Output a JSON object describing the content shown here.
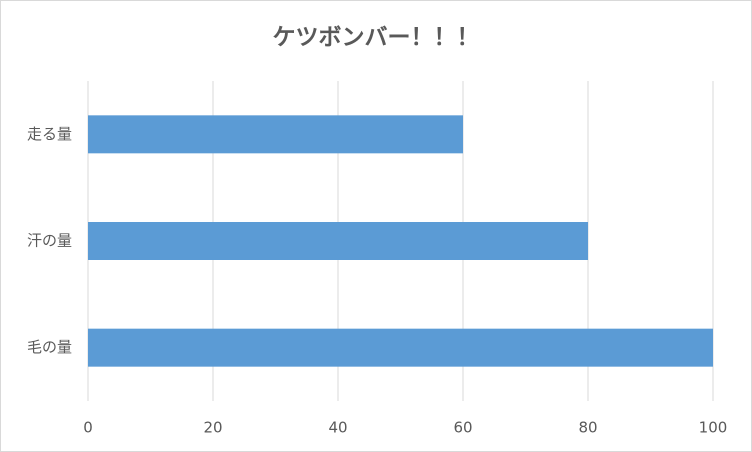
{
  "chart_data": {
    "type": "hbar",
    "title": "ケツボンバー！！！",
    "categories": [
      "走る量",
      "汗の量",
      "毛の量"
    ],
    "values": [
      60,
      80,
      100
    ],
    "color": "#5b9bd5",
    "xlim": [
      0,
      100
    ],
    "xticks": [
      0,
      20,
      40,
      60,
      80,
      100
    ],
    "grid": true
  }
}
